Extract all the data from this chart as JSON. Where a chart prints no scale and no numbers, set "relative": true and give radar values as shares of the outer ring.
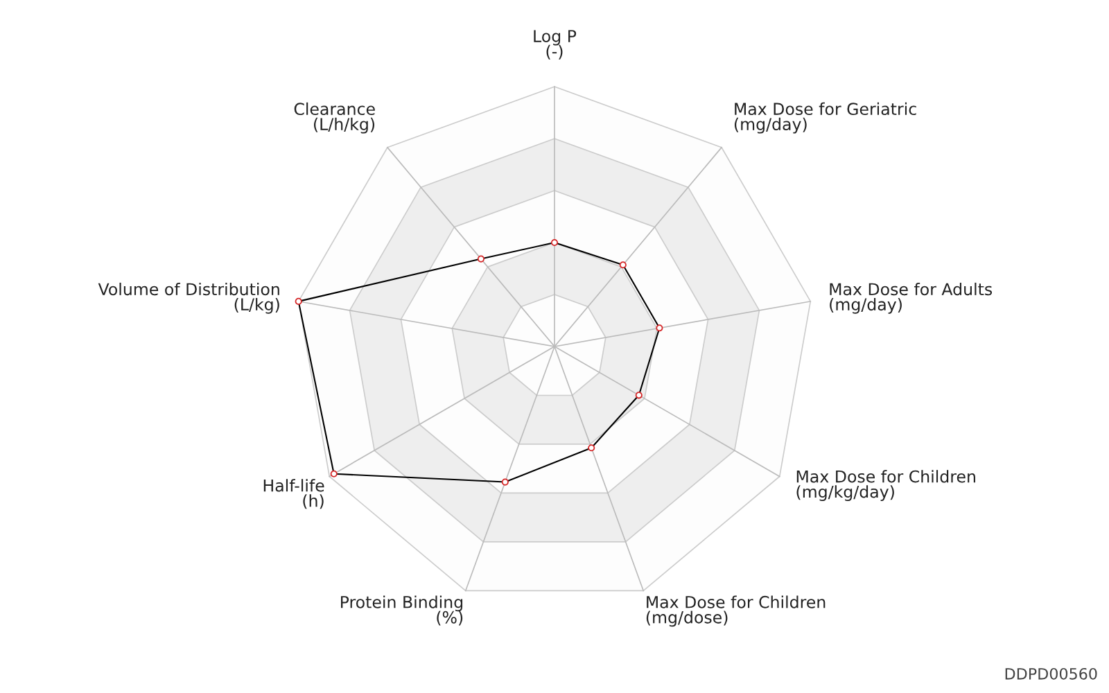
{
  "chart_data": {
    "type": "radar",
    "relative": true,
    "grid": true,
    "marker": "circle",
    "line_style": "solid",
    "categories": [
      "Log P\n(-)",
      "Max Dose for Geriatric\n(mg/day)",
      "Max Dose for Adults\n(mg/day)",
      "Max Dose for Children\n(mg/kg/day)",
      "Max Dose for Children\n(mg/dose)",
      "Protein Binding\n(%)",
      "Half-life\n(h)",
      "Volume of Distribution\n(L/kg)",
      "Clearance\n(L/h/kg)"
    ],
    "series": [
      {
        "color": "#000000",
        "values": [
          0.4,
          0.41,
          0.41,
          0.375,
          0.415,
          0.555,
          0.98,
          1.0,
          0.44
        ]
      }
    ],
    "annotations": [
      "DDPD00560"
    ]
  }
}
